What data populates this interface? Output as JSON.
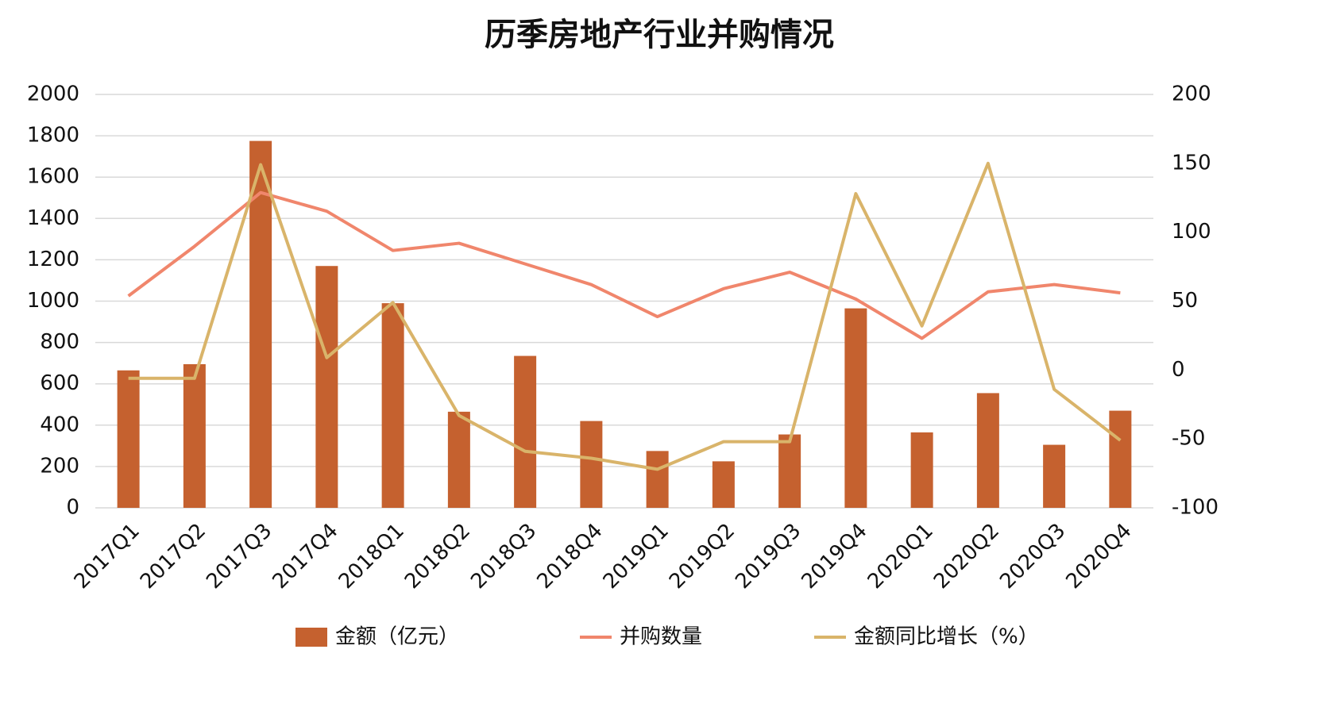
{
  "chart_data": {
    "type": "bar",
    "title": "历季房地产行业并购情况",
    "categories": [
      "2017Q1",
      "2017Q2",
      "2017Q3",
      "2017Q4",
      "2018Q1",
      "2018Q2",
      "2018Q3",
      "2018Q4",
      "2019Q1",
      "2019Q2",
      "2019Q3",
      "2019Q4",
      "2020Q1",
      "2020Q2",
      "2020Q3",
      "2020Q4"
    ],
    "series": [
      {
        "name": "金额（亿元）",
        "type": "bar",
        "color": "#c5612f",
        "values": [
          665,
          695,
          1775,
          1170,
          990,
          465,
          735,
          420,
          275,
          225,
          355,
          965,
          365,
          555,
          305,
          470
        ]
      },
      {
        "name": "并购数量",
        "type": "line",
        "color": "#f0866c",
        "values": [
          1025,
          1265,
          1525,
          1435,
          1245,
          1280,
          1180,
          1080,
          925,
          1060,
          1140,
          1010,
          820,
          1045,
          1080,
          1040
        ]
      },
      {
        "name": "金额同比增长（%）",
        "type": "line",
        "axis": "y2",
        "color": "#d9b46a",
        "values": [
          -6,
          -6,
          149,
          9,
          49,
          -33,
          -59,
          -64,
          -72,
          -52,
          -52,
          128,
          32,
          150,
          -14,
          -51
        ]
      }
    ],
    "ylim": [
      0,
      2000
    ],
    "yticks": [
      0,
      200,
      400,
      600,
      800,
      1000,
      1200,
      1400,
      1600,
      1800,
      2000
    ],
    "y2lim": [
      -100,
      200
    ],
    "y2ticks": [
      -100,
      -50,
      0,
      50,
      100,
      150,
      200
    ],
    "grid": true,
    "legend": "bottom"
  }
}
